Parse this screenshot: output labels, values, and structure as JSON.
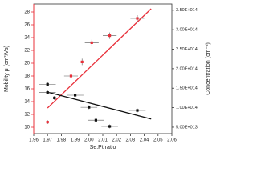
{
  "chart_data": {
    "type": "scatter",
    "x_label": "Se:Pt ratio",
    "y_label": "Mobility μ (cm²/Vs)",
    "y2_label": "Concentration (cm⁻³)",
    "xlim": [
      1.96,
      2.06
    ],
    "xticks": [
      1.96,
      1.97,
      1.98,
      1.99,
      {
        "value": 2,
        "label": "2.00"
      },
      2.01,
      2.02,
      2.03,
      2.04,
      2.05,
      2.06
    ],
    "ylim": [
      9,
      29.25
    ],
    "yticks": [
      10,
      12,
      14,
      16,
      18,
      20,
      22,
      24,
      26,
      28
    ],
    "y2lim": [
      33500000000000,
      366000000000000
    ],
    "y2ticks": [
      {
        "value": 50000000000000,
        "label": "5.00E+013"
      },
      {
        "value": 100000000000000,
        "label": "1.00E+014"
      },
      {
        "value": 150000000000000,
        "label": "1.50E+014"
      },
      {
        "value": 200000000000000,
        "label": "2.00E+014"
      },
      {
        "value": 250000000000000,
        "label": "2.50E+014"
      },
      {
        "value": 300000000000000,
        "label": "3.00E+014"
      },
      {
        "value": 350000000000000,
        "label": "3.50E+014"
      }
    ],
    "y_color": "#e8303a",
    "series": [
      {
        "color": "#e8303a",
        "axis": "y",
        "x": [
          1.97,
          1.987,
          1.995,
          2.002,
          2.015,
          2.035
        ],
        "values": [
          10.8,
          18,
          20.2,
          23.2,
          24.3,
          27
        ],
        "xerr": [
          0.005,
          0.005,
          0.005,
          0.005,
          0.005,
          0.005
        ],
        "yerr": [
          0.3,
          0.5,
          0.5,
          0.5,
          0.5,
          0.5
        ],
        "fit": {
          "x": [
            1.97,
            2.045
          ],
          "values": [
            13,
            28.5
          ]
        }
      },
      {
        "color": "#111111",
        "axis": "y2",
        "x": [
          1.97,
          1.97,
          1.975,
          1.99,
          2.0,
          2.005,
          2.015,
          2.035
        ],
        "values": [
          160000000000000,
          139000000000000,
          125000000000000,
          132000000000000,
          101000000000000,
          68000000000000,
          52000000000000,
          93000000000000
        ],
        "xerr": [
          0.006,
          0.006,
          0.006,
          0.006,
          0.006,
          0.006,
          0.006,
          0.006
        ],
        "yerr": [
          5000000000000,
          5000000000000,
          5000000000000,
          5000000000000,
          5000000000000,
          5000000000000,
          5000000000000,
          5000000000000
        ],
        "fit": {
          "x": [
            1.97,
            2.045
          ],
          "values": [
            140000000000000,
            71000000000000
          ]
        }
      }
    ]
  }
}
